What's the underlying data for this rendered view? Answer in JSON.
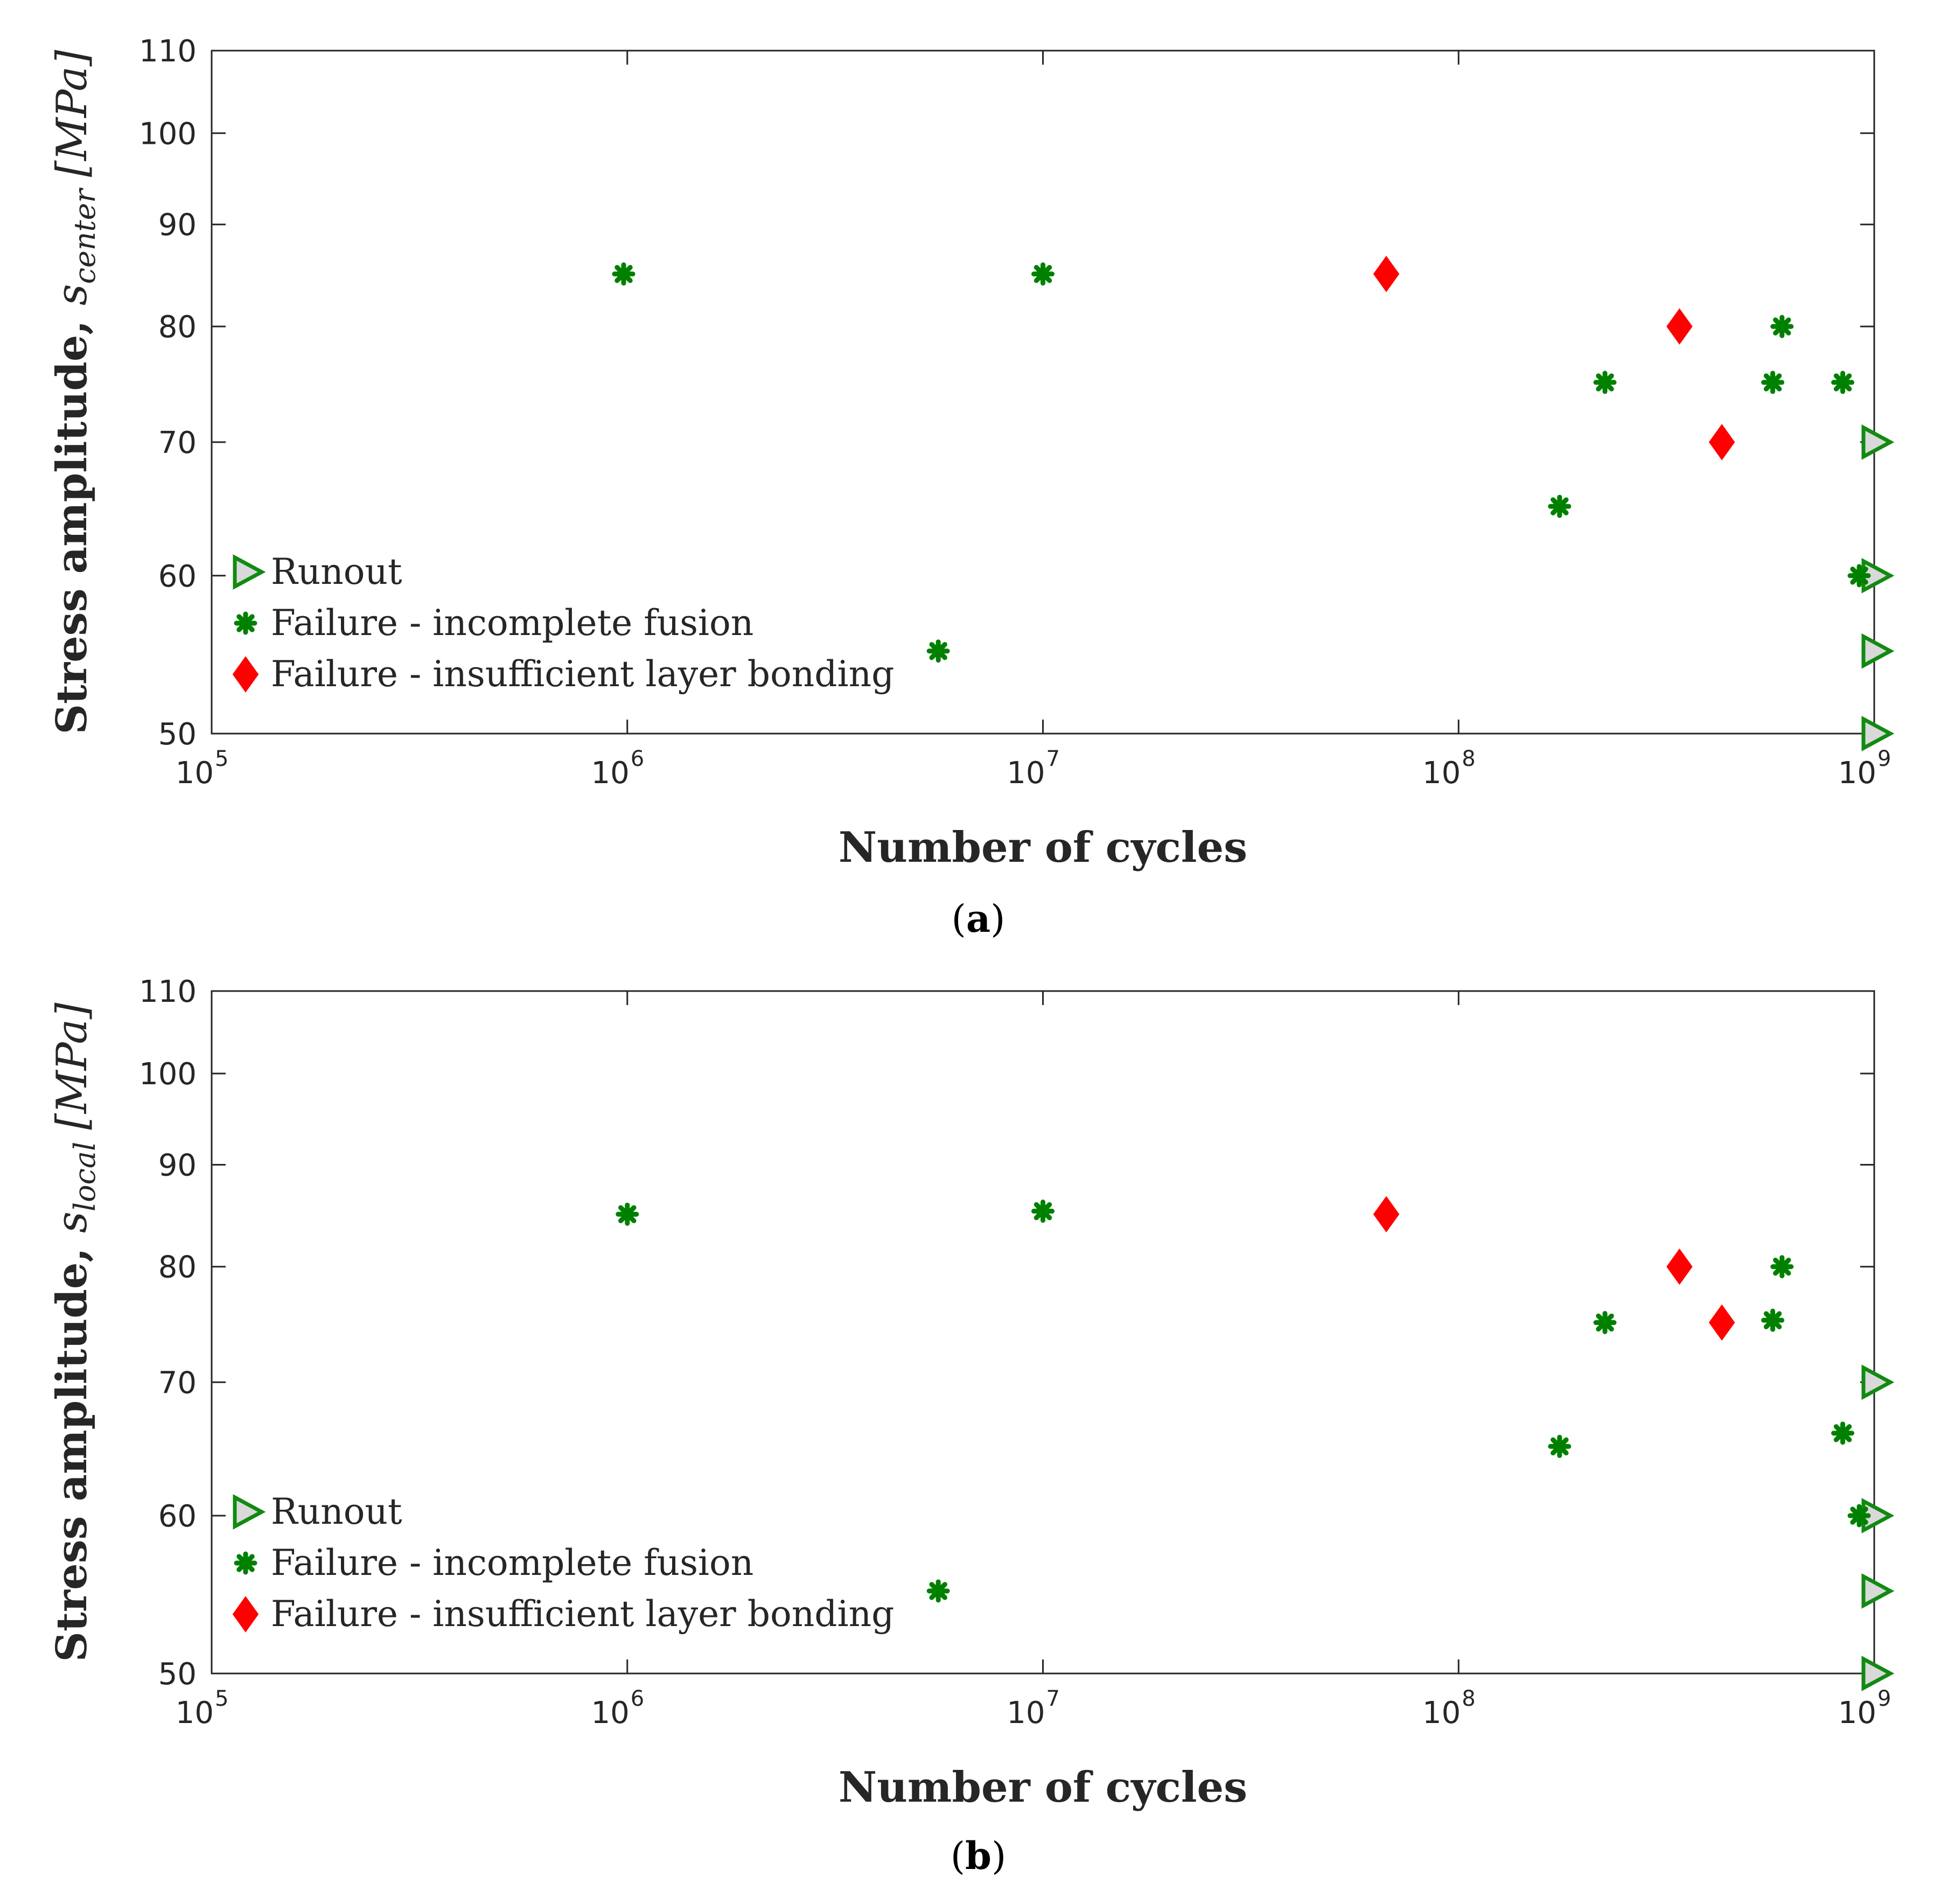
{
  "colors": {
    "failure_fusion": "#008000",
    "failure_bonding": "#ff0000",
    "runout_stroke": "#118a11",
    "runout_fill": "#d9d9d9",
    "axis": "#262626"
  },
  "legend": {
    "runout": "Runout",
    "fusion": "Failure - incomplete fusion",
    "bonding": "Failure - insufficient layer bonding"
  },
  "chart_data": [
    {
      "id": "a",
      "type": "scatter",
      "caption_open": "(",
      "caption_letter": "a",
      "caption_close": ")",
      "xlabel": "Number of cycles",
      "ylabel_text": "Stress amplitude, ",
      "ylabel_var": "s",
      "ylabel_sub": "center",
      "ylabel_unit": "[MPa]",
      "xscale": "log",
      "yscale": "log",
      "xlim": [
        100000,
        1000000000
      ],
      "ylim": [
        50,
        110
      ],
      "x_ticks": [
        {
          "base": "10",
          "exp": "5",
          "value": 100000
        },
        {
          "base": "10",
          "exp": "6",
          "value": 1000000
        },
        {
          "base": "10",
          "exp": "7",
          "value": 10000000
        },
        {
          "base": "10",
          "exp": "8",
          "value": 100000000
        },
        {
          "base": "10",
          "exp": "9",
          "value": 1000000000
        }
      ],
      "y_ticks": [
        50,
        60,
        70,
        80,
        90,
        100,
        110
      ],
      "legend_position": "bottom-left",
      "series": [
        {
          "name": "Runout",
          "marker": "triangle-right",
          "points": [
            [
              1000000000,
              70
            ],
            [
              1000000000,
              60
            ],
            [
              1000000000,
              55
            ],
            [
              1000000000,
              50
            ]
          ]
        },
        {
          "name": "Failure - incomplete fusion",
          "marker": "asterisk",
          "points": [
            [
              980000,
              85
            ],
            [
              10000000,
              85
            ],
            [
              5600000,
              55
            ],
            [
              175000000,
              65
            ],
            [
              225000000,
              75
            ],
            [
              600000000,
              80
            ],
            [
              570000000,
              75
            ],
            [
              840000000,
              75
            ],
            [
              920000000,
              60
            ]
          ]
        },
        {
          "name": "Failure - insufficient layer bonding",
          "marker": "diamond",
          "points": [
            [
              67000000,
              85
            ],
            [
              340000000,
              80
            ],
            [
              430000000,
              70
            ]
          ]
        }
      ]
    },
    {
      "id": "b",
      "type": "scatter",
      "caption_open": "(",
      "caption_letter": "b",
      "caption_close": ")",
      "xlabel": "Number of cycles",
      "ylabel_text": "Stress amplitude, ",
      "ylabel_var": "s",
      "ylabel_sub": "local",
      "ylabel_unit": "[MPa]",
      "xscale": "log",
      "yscale": "log",
      "xlim": [
        100000,
        1000000000
      ],
      "ylim": [
        50,
        110
      ],
      "x_ticks": [
        {
          "base": "10",
          "exp": "5",
          "value": 100000
        },
        {
          "base": "10",
          "exp": "6",
          "value": 1000000
        },
        {
          "base": "10",
          "exp": "7",
          "value": 10000000
        },
        {
          "base": "10",
          "exp": "8",
          "value": 100000000
        },
        {
          "base": "10",
          "exp": "9",
          "value": 1000000000
        }
      ],
      "y_ticks": [
        50,
        60,
        70,
        80,
        90,
        100,
        110
      ],
      "legend_position": "bottom-left",
      "series": [
        {
          "name": "Runout",
          "marker": "triangle-right",
          "points": [
            [
              1000000000,
              70
            ],
            [
              1000000000,
              60
            ],
            [
              1000000000,
              55
            ],
            [
              1000000000,
              50
            ]
          ]
        },
        {
          "name": "Failure - incomplete fusion",
          "marker": "asterisk",
          "points": [
            [
              1000000,
              85
            ],
            [
              10000000,
              85.3
            ],
            [
              5600000,
              55
            ],
            [
              175000000,
              65
            ],
            [
              225000000,
              75
            ],
            [
              600000000,
              80
            ],
            [
              570000000,
              75.2
            ],
            [
              840000000,
              66
            ],
            [
              920000000,
              60
            ]
          ]
        },
        {
          "name": "Failure - insufficient layer bonding",
          "marker": "diamond",
          "points": [
            [
              67000000,
              85
            ],
            [
              340000000,
              80
            ],
            [
              430000000,
              75
            ]
          ]
        }
      ]
    }
  ]
}
